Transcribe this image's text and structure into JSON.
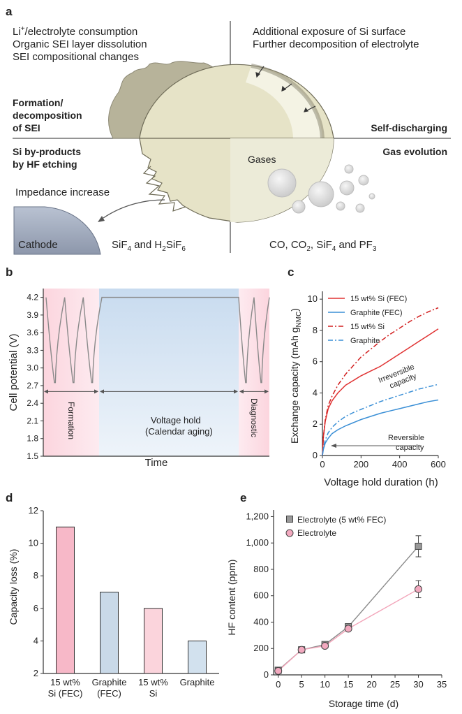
{
  "panel_a": {
    "label": "a",
    "tl_lines": [
      "Li",
      "/electrolyte consumption",
      "Organic SEI layer dissolution",
      "SEI compositional changes"
    ],
    "tr_lines": [
      "Additional exposure of Si surface",
      "Further decomposition of electrolyte"
    ],
    "formation_lines": [
      "Formation/",
      "decomposition",
      "of SEI"
    ],
    "self_discharging": "Self-discharging",
    "byproducts_lines": [
      "Si by-products",
      "by HF etching"
    ],
    "gas_evolution": "Gas evolution",
    "gases": "Gases",
    "impedance": "Impedance increase",
    "cathode": "Cathode",
    "sif_text": "SiF4 and H2SiF6",
    "co_text": "CO, CO2, SiF4 and PF3",
    "li_sup": "+",
    "sif_parts": [
      "SiF",
      "4",
      " and H",
      "2",
      "SiF",
      "6"
    ],
    "co_parts": [
      "CO, CO",
      "2",
      ", SiF",
      "4",
      " and PF",
      "3"
    ]
  },
  "chart_data": [
    {
      "panel": "b",
      "type": "line",
      "title": "",
      "xlabel": "Time",
      "ylabel": "Cell potential (V)",
      "ylim": [
        1.5,
        4.35
      ],
      "yticks": [
        "1.5",
        "1.8",
        "2.1",
        "2.4",
        "2.7",
        "3.0",
        "3.3",
        "3.6",
        "3.9",
        "4.2"
      ],
      "regions": [
        "Formation",
        "Voltage hold",
        "(Calendar aging)",
        "Diagnostic"
      ],
      "voltage_max": 4.2,
      "voltage_min": 2.75,
      "series": [
        {
          "name": "cell potential",
          "cycles_formation": 3,
          "cycles_diagnostic": 2,
          "hold_value": 4.2
        }
      ]
    },
    {
      "panel": "c",
      "type": "line",
      "xlabel": "Voltage hold duration (h)",
      "ylabel": "Exchange capacity (mAh gNMC−1)",
      "xlim": [
        0,
        600
      ],
      "ylim": [
        0,
        10.5
      ],
      "xticks": [
        "0",
        "200",
        "400",
        "600"
      ],
      "yticks": [
        "0",
        "2",
        "4",
        "6",
        "8",
        "10"
      ],
      "legend": [
        "15 wt% Si (FEC)",
        "Graphite (FEC)",
        "15 wt% Si",
        "Graphite"
      ],
      "annotations": [
        "Irreversible",
        "capacity",
        "Reversible",
        "capacity"
      ],
      "series": [
        {
          "name": "15 wt% Si (FEC)",
          "color": "#e03232",
          "dash": "solid",
          "x": [
            0,
            5,
            15,
            30,
            50,
            80,
            120,
            160,
            200,
            250,
            300,
            350,
            400,
            450,
            500,
            550,
            600
          ],
          "y": [
            0,
            1.2,
            2.2,
            3.0,
            3.5,
            4.0,
            4.5,
            4.8,
            5.1,
            5.4,
            5.7,
            6.1,
            6.5,
            6.9,
            7.3,
            7.7,
            8.1
          ]
        },
        {
          "name": "Graphite (FEC)",
          "color": "#3a8fd6",
          "dash": "solid",
          "x": [
            0,
            5,
            15,
            30,
            50,
            80,
            120,
            160,
            200,
            250,
            300,
            350,
            400,
            450,
            500,
            550,
            600
          ],
          "y": [
            0,
            0.4,
            0.8,
            1.1,
            1.4,
            1.65,
            1.9,
            2.1,
            2.3,
            2.5,
            2.7,
            2.85,
            3.0,
            3.15,
            3.3,
            3.45,
            3.55
          ]
        },
        {
          "name": "15 wt% Si",
          "color": "#d21e1e",
          "dash": "dashdot",
          "x": [
            0,
            5,
            15,
            30,
            50,
            80,
            120,
            160,
            200,
            250,
            300,
            350,
            400,
            450,
            500,
            550,
            600
          ],
          "y": [
            0,
            1.2,
            2.3,
            3.2,
            3.8,
            4.5,
            5.2,
            5.75,
            6.3,
            6.8,
            7.3,
            7.75,
            8.15,
            8.55,
            8.9,
            9.2,
            9.45
          ]
        },
        {
          "name": "Graphite",
          "color": "#3a8fd6",
          "dash": "dashdot",
          "x": [
            0,
            5,
            15,
            30,
            50,
            80,
            120,
            160,
            200,
            250,
            300,
            350,
            400,
            450,
            500,
            550,
            600
          ],
          "y": [
            0,
            0.5,
            1.0,
            1.45,
            1.8,
            2.15,
            2.5,
            2.75,
            2.95,
            3.2,
            3.45,
            3.65,
            3.85,
            4.05,
            4.25,
            4.4,
            4.55
          ]
        }
      ]
    },
    {
      "panel": "d",
      "type": "bar",
      "ylabel": "Capacity loss (%)",
      "ylim": [
        2,
        12
      ],
      "yticks": [
        "2",
        "4",
        "6",
        "8",
        "10",
        "12"
      ],
      "categories": [
        [
          "15 wt%",
          "Si (FEC)"
        ],
        [
          "Graphite",
          "(FEC)"
        ],
        [
          "15 wt%",
          "Si"
        ],
        [
          "Graphite"
        ]
      ],
      "values": [
        11,
        7,
        6,
        4
      ],
      "colors": [
        "#f7b8c8",
        "#c9d9e8",
        "#fbd4dc",
        "#d2e1ee"
      ],
      "edge": "#333333"
    },
    {
      "panel": "e",
      "type": "line",
      "xlabel": "Storage time (d)",
      "ylabel": "HF content (ppm)",
      "xlim": [
        -1,
        35
      ],
      "ylim": [
        0,
        1250
      ],
      "xticks": [
        "0",
        "5",
        "10",
        "15",
        "20",
        "25",
        "30",
        "35"
      ],
      "yticks": [
        "0",
        "200",
        "400",
        "600",
        "800",
        "1,000",
        "1,200"
      ],
      "legend": [
        "Electrolyte (5 wt% FEC)",
        "Electrolyte"
      ],
      "series": [
        {
          "name": "Electrolyte (5 wt% FEC)",
          "marker": "square",
          "color": "#999999",
          "line": "#8a8a8a",
          "x": [
            0,
            5,
            10,
            15,
            30
          ],
          "y": [
            35,
            190,
            230,
            365,
            975
          ],
          "err": [
            0,
            0,
            0,
            0,
            80
          ]
        },
        {
          "name": "Electrolyte",
          "marker": "circle",
          "color": "#f2a9bf",
          "line": "#f2a3b8",
          "x": [
            0,
            5,
            10,
            15,
            30
          ],
          "y": [
            30,
            190,
            220,
            350,
            650
          ],
          "err": [
            0,
            0,
            0,
            0,
            65
          ]
        }
      ]
    }
  ],
  "panel_labels": [
    "a",
    "b",
    "c",
    "d",
    "e"
  ]
}
